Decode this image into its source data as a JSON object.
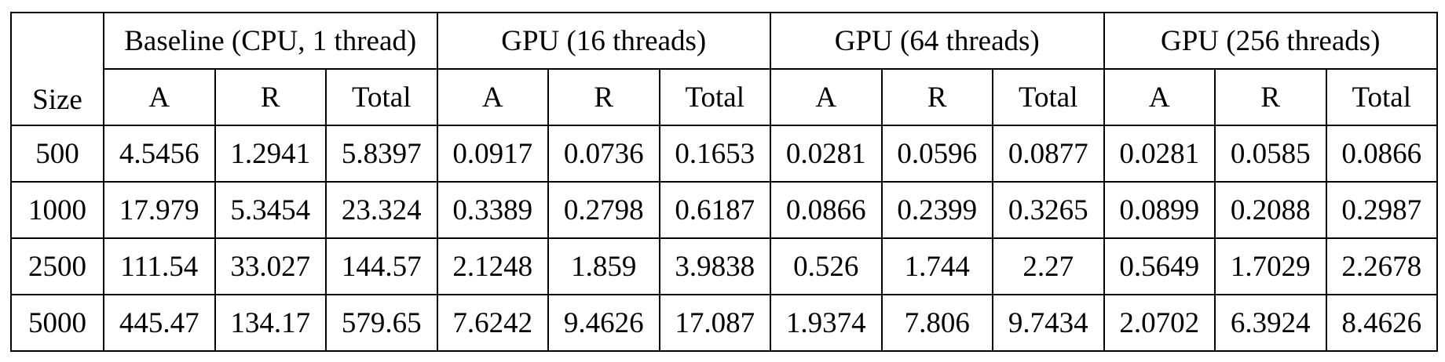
{
  "table": {
    "size_header": "Size",
    "groups": [
      "Baseline (CPU, 1 thread)",
      "GPU (16 threads)",
      "GPU (64 threads)",
      "GPU (256 threads)"
    ],
    "subheaders": [
      "A",
      "R",
      "Total"
    ],
    "rows": [
      {
        "size": "500",
        "values": [
          "4.5456",
          "1.2941",
          "5.8397",
          "0.0917",
          "0.0736",
          "0.1653",
          "0.0281",
          "0.0596",
          "0.0877",
          "0.0281",
          "0.0585",
          "0.0866"
        ]
      },
      {
        "size": "1000",
        "values": [
          "17.979",
          "5.3454",
          "23.324",
          "0.3389",
          "0.2798",
          "0.6187",
          "0.0866",
          "0.2399",
          "0.3265",
          "0.0899",
          "0.2088",
          "0.2987"
        ]
      },
      {
        "size": "2500",
        "values": [
          "111.54",
          "33.027",
          "144.57",
          "2.1248",
          "1.859",
          "3.9838",
          "0.526",
          "1.744",
          "2.27",
          "0.5649",
          "1.7029",
          "2.2678"
        ]
      },
      {
        "size": "5000",
        "values": [
          "445.47",
          "134.17",
          "579.65",
          "7.6242",
          "9.4626",
          "17.087",
          "1.9374",
          "7.806",
          "9.7434",
          "2.0702",
          "6.3924",
          "8.4626"
        ]
      }
    ]
  }
}
